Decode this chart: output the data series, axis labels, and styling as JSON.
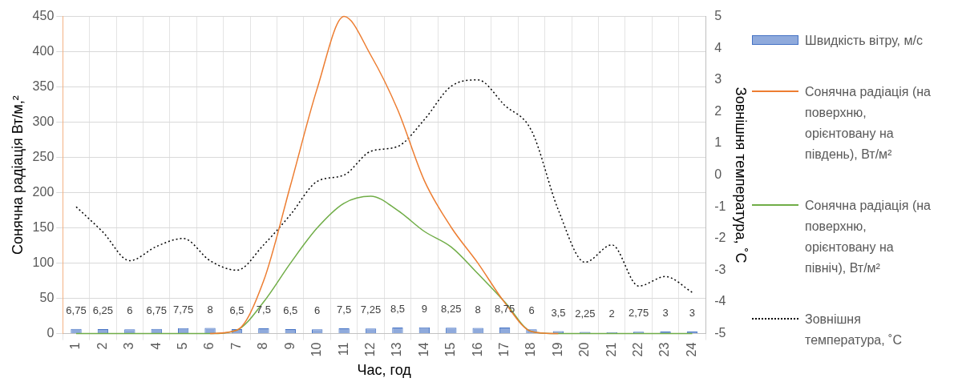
{
  "chart_data": {
    "type": "bar",
    "xlabel": "Час, год",
    "ylabel": "Сонячна радіація Вт/м,²",
    "y2label": "Зовнішня температура, ˚С",
    "categories": [
      "1",
      "2",
      "3",
      "4",
      "5",
      "6",
      "7",
      "8",
      "9",
      "10",
      "11",
      "12",
      "13",
      "14",
      "15",
      "16",
      "17",
      "18",
      "19",
      "20",
      "21",
      "22",
      "23",
      "24"
    ],
    "series": [
      {
        "name": "Швидкість вітру, м/с",
        "color": "#8faadc",
        "values": [
          6.75,
          6.25,
          6,
          6.75,
          7.75,
          8,
          6.5,
          7.5,
          6.5,
          6,
          7.5,
          7.25,
          8.5,
          9,
          8.25,
          8,
          8.75,
          6,
          3.5,
          2.25,
          2,
          2.75,
          3,
          3
        ],
        "value_labels": [
          "6,75",
          "6,25",
          "6",
          "6,75",
          "7,75",
          "8",
          "6,5",
          "7,5",
          "6,5",
          "6",
          "7,5",
          "7,25",
          "8,5",
          "9",
          "8,25",
          "8",
          "8,75",
          "6",
          "3,5",
          "2,25",
          "2",
          "2,75",
          "3",
          "3"
        ]
      },
      {
        "name": "Сонячна радіація (на поверхню, орієнтовану на південь), Вт/м²",
        "type": "line",
        "color": "#ed7d31",
        "line_style": "solid",
        "values": [
          null,
          null,
          null,
          null,
          null,
          0,
          5,
          75,
          210,
          348,
          450,
          395,
          318,
          217,
          151,
          100,
          44,
          3,
          0,
          null,
          null,
          null,
          null,
          null
        ]
      },
      {
        "name": "Сонячна радіація (на поверхню, орієнтовану на північ), Вт/м²",
        "type": "line",
        "color": "#70ad47",
        "line_style": "solid",
        "values": [
          0,
          0,
          0,
          0,
          0,
          0,
          5,
          45,
          100,
          150,
          185,
          195,
          175,
          145,
          123,
          85,
          45,
          3,
          0,
          0,
          0,
          0,
          0,
          0
        ]
      },
      {
        "name": "Зовнішня температура, ˚С",
        "type": "line",
        "axis": "y2",
        "color": "#000000",
        "line_style": "dotted",
        "values": [
          -1,
          -1.8,
          -2.7,
          -2.25,
          -2,
          -2.7,
          -3,
          -2.2,
          -1.25,
          -0.2,
          0,
          0.75,
          0.9,
          1.75,
          2.8,
          3,
          2.2,
          1.4,
          -1.1,
          -2.75,
          -2.2,
          -3.5,
          -3.2,
          -3.7
        ]
      }
    ],
    "ylim": [
      0,
      450
    ],
    "yticks": [
      0,
      50,
      100,
      150,
      200,
      250,
      300,
      350,
      400,
      450
    ],
    "y2lim": [
      -5,
      5
    ],
    "y2ticks": [
      -5,
      -4,
      -3,
      -2,
      -1,
      0,
      1,
      2,
      3,
      4,
      5
    ],
    "grid": true,
    "legend": "right",
    "marker": "none"
  }
}
